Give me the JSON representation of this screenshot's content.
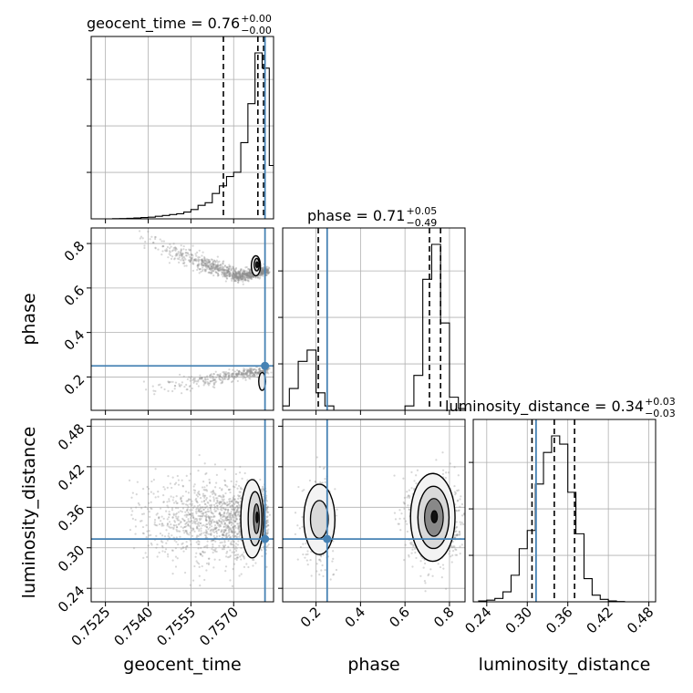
{
  "chart_data": {
    "type": "corner",
    "parameters": [
      "geocent_time",
      "phase",
      "luminosity_distance"
    ],
    "truth": {
      "geocent_time": 0.7581,
      "phase": 0.25,
      "luminosity_distance": 0.313
    },
    "truth_color": "#4682b4",
    "ranges": {
      "geocent_time": [
        0.752,
        0.7584
      ],
      "phase": [
        0.05,
        0.87
      ],
      "luminosity_distance": [
        0.22,
        0.49
      ]
    },
    "ticks": {
      "geocent_time": [
        0.7525,
        0.754,
        0.7555,
        0.757
      ],
      "phase": [
        0.2,
        0.4,
        0.6,
        0.8
      ],
      "luminosity_distance": [
        0.24,
        0.3,
        0.36,
        0.42,
        0.48
      ]
    },
    "tick_labels": {
      "geocent_time": [
        "0.7525",
        "0.7540",
        "0.7555",
        "0.7570"
      ],
      "phase": [
        "0.2",
        "0.4",
        "0.6",
        "0.8"
      ],
      "luminosity_distance": [
        "0.24",
        "0.30",
        "0.36",
        "0.42",
        "0.48"
      ]
    },
    "titles": [
      {
        "param": "geocent_time",
        "label": "geocent_time = 0.76",
        "plus": "+0.00",
        "minus": "−0.00"
      },
      {
        "param": "phase",
        "label": "phase = 0.71",
        "plus": "+0.05",
        "minus": "−0.49"
      },
      {
        "param": "luminosity_distance",
        "label": "luminosity_distance = 0.34",
        "plus": "+0.03",
        "minus": "−0.03"
      }
    ],
    "quantiles": {
      "geocent_time": [
        0.75664,
        0.75785,
        0.75805
      ],
      "phase": [
        0.21,
        0.71,
        0.76
      ],
      "luminosity_distance": [
        0.307,
        0.34,
        0.37
      ]
    },
    "histograms": {
      "geocent_time": {
        "edges": [
          0.75275,
          0.753,
          0.75325,
          0.7535,
          0.75375,
          0.754,
          0.75425,
          0.7545,
          0.75475,
          0.755,
          0.75525,
          0.7555,
          0.75575,
          0.756,
          0.75625,
          0.7565,
          0.75675,
          0.757,
          0.75725,
          0.7575,
          0.75775,
          0.758,
          0.75825,
          0.7585
        ],
        "counts": [
          0.2,
          0.4,
          0.6,
          1,
          1.5,
          2,
          3,
          4,
          5,
          6,
          8,
          11,
          16,
          19,
          30,
          39,
          50,
          55,
          90,
          136,
          196,
          178,
          63
        ]
      },
      "phase": {
        "edges": [
          0.04,
          0.08,
          0.12,
          0.16,
          0.2,
          0.24,
          0.28,
          0.32,
          0.36,
          0.4,
          0.44,
          0.48,
          0.52,
          0.56,
          0.6,
          0.64,
          0.68,
          0.72,
          0.76,
          0.8,
          0.84,
          0.88
        ],
        "counts": [
          5,
          25,
          56,
          69,
          20,
          5,
          0,
          0,
          0,
          0,
          0,
          0,
          0,
          0,
          5,
          40,
          150,
          190,
          100,
          15,
          2
        ]
      },
      "luminosity_distance": {
        "edges": [
          0.228,
          0.24,
          0.252,
          0.264,
          0.276,
          0.288,
          0.3,
          0.312,
          0.324,
          0.336,
          0.348,
          0.36,
          0.372,
          0.384,
          0.396,
          0.408,
          0.42,
          0.432,
          0.444,
          0.456,
          0.468,
          0.48
        ],
        "counts": [
          0.5,
          1,
          2,
          6,
          16,
          32,
          43,
          71,
          90,
          100,
          95,
          66,
          41,
          14,
          4,
          1.5,
          0.5,
          0.2,
          0,
          0,
          0
        ]
      }
    },
    "grid": true,
    "legend": "none"
  }
}
